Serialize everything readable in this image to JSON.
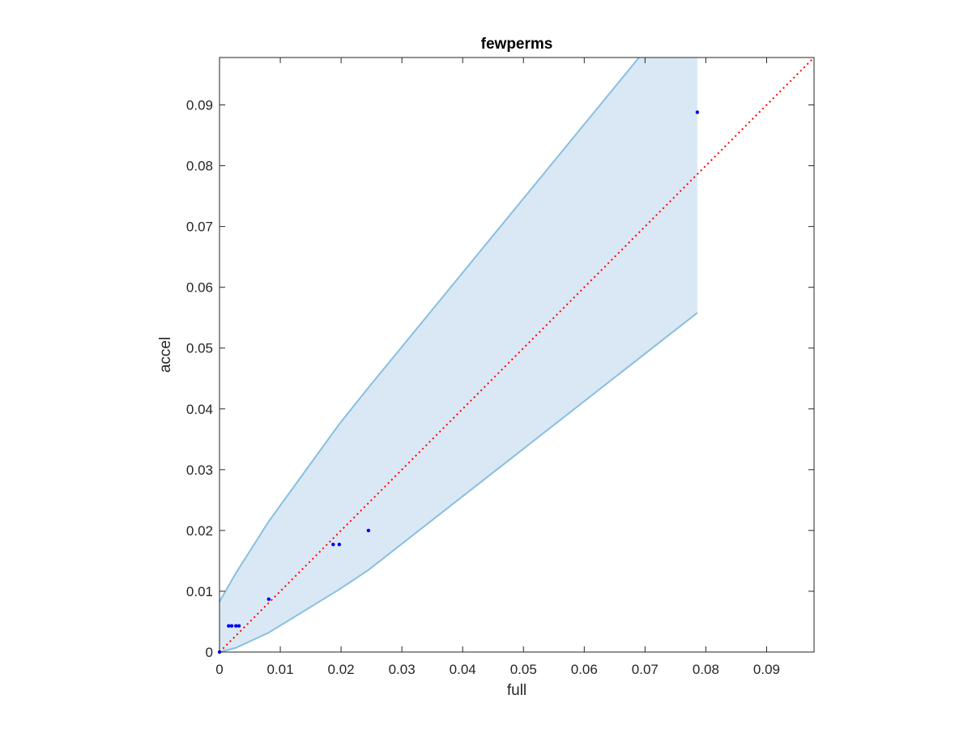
{
  "colors": {
    "band_fill": "#d9e8f4",
    "band_edge": "#89bfe0",
    "points": "#0000ff",
    "reference_line": "#ff0000",
    "axes": "#262626"
  },
  "chart_data": {
    "type": "scatter",
    "title": "fewperms",
    "xlabel": "full",
    "ylabel": "accel",
    "xlim": [
      0,
      0.0978
    ],
    "ylim": [
      0,
      0.0978
    ],
    "grid": false,
    "legend": "none",
    "xticks": [
      0,
      0.01,
      0.02,
      0.03,
      0.04,
      0.05,
      0.06,
      0.07,
      0.08,
      0.09
    ],
    "xtick_labels": [
      "0",
      "0.01",
      "0.02",
      "0.03",
      "0.04",
      "0.05",
      "0.06",
      "0.07",
      "0.08",
      "0.09"
    ],
    "yticks": [
      0,
      0.01,
      0.02,
      0.03,
      0.04,
      0.05,
      0.06,
      0.07,
      0.08,
      0.09
    ],
    "ytick_labels": [
      "0",
      "0.01",
      "0.02",
      "0.03",
      "0.04",
      "0.05",
      "0.06",
      "0.07",
      "0.08",
      "0.09"
    ],
    "points": [
      {
        "x": 0.0,
        "y": 0.0
      },
      {
        "x": 0.0015,
        "y": 0.0043
      },
      {
        "x": 0.002,
        "y": 0.0043
      },
      {
        "x": 0.0027,
        "y": 0.0043
      },
      {
        "x": 0.0032,
        "y": 0.0043
      },
      {
        "x": 0.0081,
        "y": 0.0087
      },
      {
        "x": 0.0187,
        "y": 0.0177
      },
      {
        "x": 0.0197,
        "y": 0.0177
      },
      {
        "x": 0.0245,
        "y": 0.02
      },
      {
        "x": 0.0786,
        "y": 0.0888
      }
    ],
    "band_upper": [
      {
        "x": 0.0,
        "y": 0.0083
      },
      {
        "x": 0.0027,
        "y": 0.013
      },
      {
        "x": 0.0081,
        "y": 0.0215
      },
      {
        "x": 0.0197,
        "y": 0.0375
      },
      {
        "x": 0.0245,
        "y": 0.0435
      },
      {
        "x": 0.069,
        "y": 0.0978
      }
    ],
    "band_lower": [
      {
        "x": 0.0,
        "y": 0.0
      },
      {
        "x": 0.0027,
        "y": 0.0007
      },
      {
        "x": 0.0081,
        "y": 0.0032
      },
      {
        "x": 0.0197,
        "y": 0.0103
      },
      {
        "x": 0.0245,
        "y": 0.0135
      },
      {
        "x": 0.0786,
        "y": 0.0558
      }
    ],
    "band_right_x": 0.0786,
    "reference_line": {
      "style": "dotted",
      "from": [
        0,
        0
      ],
      "to": [
        0.0978,
        0.0978
      ]
    }
  }
}
